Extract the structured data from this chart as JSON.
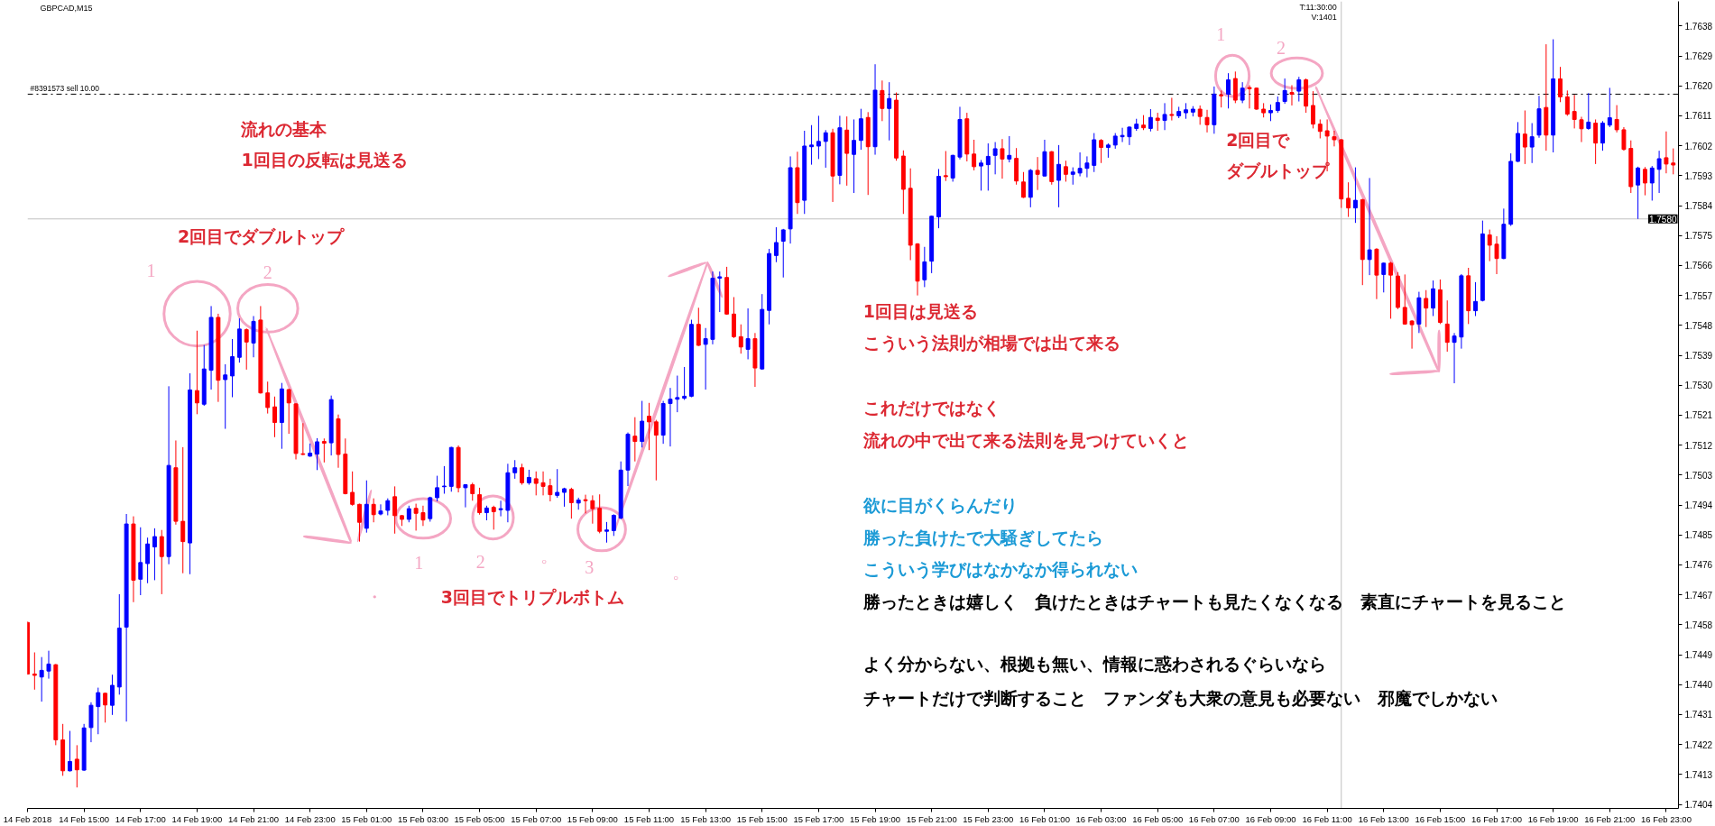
{
  "chart_data": {
    "type": "candlestick",
    "title": "GBPCAD,M15",
    "x": [
      "2018-02-14T13:00",
      "2018-02-14T13:15",
      "2018-02-14T13:30",
      "2018-02-14T13:45",
      "2018-02-14T14:00",
      "2018-02-14T14:15",
      "2018-02-14T14:30",
      "2018-02-14T14:45",
      "2018-02-14T15:00",
      "2018-02-14T15:15",
      "2018-02-14T15:30",
      "2018-02-14T15:45",
      "2018-02-14T16:00",
      "2018-02-14T16:15",
      "2018-02-14T16:30",
      "2018-02-14T16:45",
      "2018-02-14T17:00",
      "2018-02-14T17:15",
      "2018-02-14T17:30",
      "2018-02-14T17:45",
      "2018-02-14T18:00",
      "2018-02-14T18:15",
      "2018-02-14T18:30",
      "2018-02-14T18:45",
      "2018-02-14T19:00",
      "2018-02-14T19:15",
      "2018-02-14T19:30",
      "2018-02-14T19:45",
      "2018-02-14T20:00",
      "2018-02-14T20:15",
      "2018-02-14T20:30",
      "2018-02-14T20:45",
      "2018-02-14T21:00",
      "2018-02-14T21:15",
      "2018-02-14T21:30",
      "2018-02-14T21:45",
      "2018-02-14T22:00",
      "2018-02-14T22:15",
      "2018-02-14T22:30",
      "2018-02-14T22:45",
      "2018-02-14T23:00",
      "2018-02-14T23:15",
      "2018-02-14T23:30",
      "2018-02-14T23:45",
      "2018-02-15T00:00",
      "2018-02-15T00:15",
      "2018-02-15T00:30",
      "2018-02-15T00:45",
      "2018-02-15T01:00",
      "2018-02-15T01:15",
      "2018-02-15T01:30",
      "2018-02-15T01:45",
      "2018-02-15T02:00",
      "2018-02-15T02:15",
      "2018-02-15T02:30",
      "2018-02-15T02:45",
      "2018-02-15T03:00",
      "2018-02-15T03:15",
      "2018-02-15T03:30",
      "2018-02-15T03:45",
      "2018-02-15T04:00",
      "2018-02-15T04:15",
      "2018-02-15T04:30",
      "2018-02-15T04:45",
      "2018-02-15T05:00",
      "2018-02-15T05:15",
      "2018-02-15T05:30",
      "2018-02-15T05:45",
      "2018-02-15T06:00",
      "2018-02-15T06:15",
      "2018-02-15T06:30",
      "2018-02-15T06:45",
      "2018-02-15T07:00",
      "2018-02-15T07:15",
      "2018-02-15T07:30",
      "2018-02-15T07:45",
      "2018-02-15T08:00",
      "2018-02-15T08:15",
      "2018-02-15T08:30",
      "2018-02-15T08:45",
      "2018-02-15T09:00",
      "2018-02-15T09:15",
      "2018-02-15T09:30",
      "2018-02-15T09:45",
      "2018-02-15T10:00",
      "2018-02-15T10:15",
      "2018-02-15T10:30",
      "2018-02-15T10:45",
      "2018-02-15T11:00",
      "2018-02-15T11:15",
      "2018-02-15T11:30",
      "2018-02-15T11:45",
      "2018-02-15T12:00",
      "2018-02-15T12:15",
      "2018-02-15T12:30",
      "2018-02-15T12:45",
      "2018-02-15T13:00",
      "2018-02-15T13:15",
      "2018-02-15T13:30",
      "2018-02-15T13:45",
      "2018-02-15T14:00",
      "2018-02-15T14:15",
      "2018-02-15T14:30",
      "2018-02-15T14:45",
      "2018-02-15T15:00",
      "2018-02-15T15:15",
      "2018-02-15T15:30",
      "2018-02-15T15:45",
      "2018-02-15T16:00",
      "2018-02-15T16:15",
      "2018-02-15T16:30",
      "2018-02-15T16:45",
      "2018-02-15T17:00",
      "2018-02-15T17:15",
      "2018-02-15T17:30",
      "2018-02-15T17:45",
      "2018-02-15T18:00",
      "2018-02-15T18:15",
      "2018-02-15T18:30",
      "2018-02-15T18:45",
      "2018-02-15T19:00",
      "2018-02-15T19:15",
      "2018-02-15T19:30",
      "2018-02-15T19:45",
      "2018-02-15T20:00",
      "2018-02-15T20:15",
      "2018-02-15T20:30",
      "2018-02-15T20:45",
      "2018-02-15T21:00",
      "2018-02-15T21:15",
      "2018-02-15T21:30",
      "2018-02-15T21:45",
      "2018-02-15T22:00",
      "2018-02-15T22:15",
      "2018-02-15T22:30",
      "2018-02-15T22:45",
      "2018-02-15T23:00",
      "2018-02-15T23:15",
      "2018-02-15T23:30",
      "2018-02-15T23:45",
      "2018-02-16T00:00",
      "2018-02-16T00:15",
      "2018-02-16T00:30",
      "2018-02-16T00:45",
      "2018-02-16T01:00",
      "2018-02-16T01:15",
      "2018-02-16T01:30",
      "2018-02-16T01:45",
      "2018-02-16T02:00",
      "2018-02-16T02:15",
      "2018-02-16T02:30",
      "2018-02-16T02:45",
      "2018-02-16T03:00",
      "2018-02-16T03:15",
      "2018-02-16T03:30",
      "2018-02-16T03:45",
      "2018-02-16T04:00",
      "2018-02-16T04:15",
      "2018-02-16T04:30",
      "2018-02-16T04:45",
      "2018-02-16T05:00",
      "2018-02-16T05:15",
      "2018-02-16T05:30",
      "2018-02-16T05:45",
      "2018-02-16T06:00",
      "2018-02-16T06:15",
      "2018-02-16T06:30",
      "2018-02-16T06:45",
      "2018-02-16T07:00",
      "2018-02-16T07:15",
      "2018-02-16T07:30",
      "2018-02-16T07:45",
      "2018-02-16T08:00",
      "2018-02-16T08:15",
      "2018-02-16T08:30",
      "2018-02-16T08:45",
      "2018-02-16T09:00",
      "2018-02-16T09:15",
      "2018-02-16T09:30",
      "2018-02-16T09:45",
      "2018-02-16T10:00",
      "2018-02-16T10:15",
      "2018-02-16T10:30",
      "2018-02-16T10:45",
      "2018-02-16T11:00",
      "2018-02-16T11:15",
      "2018-02-16T11:30",
      "2018-02-16T11:45",
      "2018-02-16T12:00",
      "2018-02-16T12:15",
      "2018-02-16T12:30",
      "2018-02-16T12:45",
      "2018-02-16T13:00",
      "2018-02-16T13:15",
      "2018-02-16T13:30",
      "2018-02-16T13:45",
      "2018-02-16T14:00",
      "2018-02-16T14:15",
      "2018-02-16T14:30",
      "2018-02-16T14:45",
      "2018-02-16T15:00",
      "2018-02-16T15:15",
      "2018-02-16T15:30",
      "2018-02-16T15:45",
      "2018-02-16T16:00",
      "2018-02-16T16:15",
      "2018-02-16T16:30",
      "2018-02-16T16:45",
      "2018-02-16T17:00",
      "2018-02-16T17:15",
      "2018-02-16T17:30",
      "2018-02-16T17:45",
      "2018-02-16T18:00",
      "2018-02-16T18:15",
      "2018-02-16T18:30",
      "2018-02-16T18:45",
      "2018-02-16T19:00",
      "2018-02-16T19:15",
      "2018-02-16T19:30",
      "2018-02-16T19:45",
      "2018-02-16T20:00",
      "2018-02-16T20:15",
      "2018-02-16T20:30",
      "2018-02-16T20:45",
      "2018-02-16T21:00",
      "2018-02-16T21:15",
      "2018-02-16T21:30",
      "2018-02-16T21:45",
      "2018-02-16T22:00",
      "2018-02-16T22:15",
      "2018-02-16T22:30",
      "2018-02-16T22:45",
      "2018-02-16T23:00",
      "2018-02-16T23:15"
    ],
    "ohlc": [
      [
        1.74587,
        1.7459,
        1.7443,
        1.74432
      ],
      [
        1.74432,
        1.74497,
        1.74385,
        1.74428
      ],
      [
        1.74423,
        1.74483,
        1.74349,
        1.74443
      ],
      [
        1.74441,
        1.74502,
        1.74418,
        1.74462
      ],
      [
        1.7446,
        1.74462,
        1.74218,
        1.74234
      ],
      [
        1.74234,
        1.74282,
        1.74126,
        1.74141
      ],
      [
        1.74141,
        1.74261,
        1.74139,
        1.74169
      ],
      [
        1.74176,
        1.74218,
        1.74091,
        1.74144
      ],
      [
        1.74143,
        1.74282,
        1.74141,
        1.7427
      ],
      [
        1.74271,
        1.74347,
        1.74227,
        1.74338
      ],
      [
        1.74334,
        1.74391,
        1.74251,
        1.74376
      ],
      [
        1.74374,
        1.74376,
        1.74286,
        1.74339
      ],
      [
        1.74338,
        1.7443,
        1.74309,
        1.74398
      ],
      [
        1.74393,
        1.74672,
        1.7437,
        1.7457
      ],
      [
        1.74573,
        1.74913,
        1.74289,
        1.74883
      ],
      [
        1.74883,
        1.74906,
        1.74648,
        1.74714
      ],
      [
        1.74717,
        1.74873,
        1.74669,
        1.74767
      ],
      [
        1.74764,
        1.74842,
        1.74705,
        1.74823
      ],
      [
        1.74814,
        1.7487,
        1.74714,
        1.74845
      ],
      [
        1.74845,
        1.74865,
        1.74672,
        1.74785
      ],
      [
        1.74785,
        1.75297,
        1.74762,
        1.75059
      ],
      [
        1.75052,
        1.75134,
        1.74881,
        1.74891
      ],
      [
        1.74891,
        1.75114,
        1.74735,
        1.7483
      ],
      [
        1.74826,
        1.75336,
        1.74732,
        1.75286
      ],
      [
        1.75284,
        1.75464,
        1.75213,
        1.75247
      ],
      [
        1.75243,
        1.75421,
        1.75238,
        1.75349
      ],
      [
        1.75345,
        1.75538,
        1.75287,
        1.75504
      ],
      [
        1.75504,
        1.75515,
        1.7525,
        1.75315
      ],
      [
        1.75317,
        1.75363,
        1.75169,
        1.75331
      ],
      [
        1.75328,
        1.75439,
        1.75264,
        1.75386
      ],
      [
        1.75384,
        1.75501,
        1.75368,
        1.75469
      ],
      [
        1.75467,
        1.75471,
        1.75347,
        1.7543
      ],
      [
        1.75427,
        1.75508,
        1.75384,
        1.75492
      ],
      [
        1.75496,
        1.75538,
        1.75275,
        1.75277
      ],
      [
        1.75277,
        1.75311,
        1.75215,
        1.75233
      ],
      [
        1.75235,
        1.75266,
        1.75144,
        1.75188
      ],
      [
        1.75188,
        1.75307,
        1.75109,
        1.75289
      ],
      [
        1.75287,
        1.75289,
        1.75154,
        1.75247
      ],
      [
        1.75244,
        1.75246,
        1.75077,
        1.75095
      ],
      [
        1.75094,
        1.75186,
        1.7509,
        1.75092
      ],
      [
        1.75087,
        1.75125,
        1.75085,
        1.75096
      ],
      [
        1.75093,
        1.75141,
        1.75045,
        1.7513
      ],
      [
        1.75131,
        1.7514,
        1.75068,
        1.75126
      ],
      [
        1.75127,
        1.75269,
        1.75089,
        1.75257
      ],
      [
        1.75199,
        1.75212,
        1.75052,
        1.75092
      ],
      [
        1.75093,
        1.7514,
        1.74972,
        1.74974
      ],
      [
        1.74978,
        1.75041,
        1.74938,
        1.74942
      ],
      [
        1.74942,
        1.74944,
        1.7483,
        1.74888
      ],
      [
        1.7487,
        1.75014,
        1.74857,
        1.74942
      ],
      [
        1.74942,
        1.7496,
        1.74888,
        1.74911
      ],
      [
        1.74913,
        1.74942,
        1.74909,
        1.74922
      ],
      [
        1.74924,
        1.7496,
        1.74909,
        1.74953
      ],
      [
        1.74965,
        1.74996,
        1.74854,
        1.74908
      ],
      [
        1.74908,
        1.7491,
        1.74877,
        1.74897
      ],
      [
        1.74897,
        1.74938,
        1.74888,
        1.74929
      ],
      [
        1.7493,
        1.74944,
        1.74863,
        1.74915
      ],
      [
        1.74917,
        1.74938,
        1.74877,
        1.74895
      ],
      [
        1.74899,
        1.74965,
        1.7489,
        1.74962
      ],
      [
        1.74962,
        1.75028,
        1.74951,
        1.74992
      ],
      [
        1.74995,
        1.75057,
        1.74974,
        1.74997
      ],
      [
        1.74996,
        1.75115,
        1.7498,
        1.75113
      ],
      [
        1.75113,
        1.75119,
        1.74978,
        1.74992
      ],
      [
        1.74992,
        1.75003,
        1.74933,
        1.75001
      ],
      [
        1.75001,
        1.75007,
        1.74953,
        1.74974
      ],
      [
        1.74971,
        1.74992,
        1.74911,
        1.74917
      ],
      [
        1.74917,
        1.74938,
        1.74894,
        1.74931
      ],
      [
        1.74933,
        1.74938,
        1.74866,
        1.7492
      ],
      [
        1.74926,
        1.74953,
        1.74906,
        1.74929
      ],
      [
        1.74924,
        1.75064,
        1.74888,
        1.75037
      ],
      [
        1.75037,
        1.75075,
        1.75019,
        1.75052
      ],
      [
        1.75052,
        1.75064,
        1.75001,
        1.75007
      ],
      [
        1.75007,
        1.75046,
        1.75001,
        1.75023
      ],
      [
        1.75019,
        1.75041,
        1.74969,
        1.75005
      ],
      [
        1.75007,
        1.75041,
        1.74969,
        1.74996
      ],
      [
        1.74998,
        1.75019,
        1.74951,
        1.74971
      ],
      [
        1.74969,
        1.75048,
        1.74962,
        1.74978
      ],
      [
        1.74978,
        1.74992,
        1.74935,
        1.74989
      ],
      [
        1.74987,
        1.74992,
        1.74899,
        1.74947
      ],
      [
        1.74946,
        1.74962,
        1.74926,
        1.74955
      ],
      [
        1.74956,
        1.74971,
        1.74915,
        1.74953
      ],
      [
        1.74953,
        1.74969,
        1.74884,
        1.74929
      ],
      [
        1.7493,
        1.74972,
        1.74855,
        1.74861
      ],
      [
        1.74861,
        1.74889,
        1.74827,
        1.74865
      ],
      [
        1.74863,
        1.74912,
        1.74847,
        1.74909
      ],
      [
        1.74901,
        1.75071,
        1.74897,
        1.75045
      ],
      [
        1.75045,
        1.75158,
        1.74997,
        1.75153
      ],
      [
        1.75147,
        1.75204,
        1.75071,
        1.75131
      ],
      [
        1.75131,
        1.75253,
        1.75113,
        1.75192
      ],
      [
        1.75207,
        1.75247,
        1.75105,
        1.7519
      ],
      [
        1.7519,
        1.75196,
        1.75014,
        1.7515
      ],
      [
        1.7515,
        1.75253,
        1.75124,
        1.75245
      ],
      [
        1.75245,
        1.75292,
        1.75116,
        1.75258
      ],
      [
        1.75258,
        1.75329,
        1.75219,
        1.75263
      ],
      [
        1.75261,
        1.75355,
        1.75256,
        1.75267
      ],
      [
        1.75267,
        1.75497,
        1.75264,
        1.75483
      ],
      [
        1.75483,
        1.75533,
        1.75418,
        1.7542
      ],
      [
        1.75423,
        1.75472,
        1.75287,
        1.7544
      ],
      [
        1.75438,
        1.75642,
        1.75423,
        1.75622
      ],
      [
        1.75622,
        1.75642,
        1.7552,
        1.75626
      ],
      [
        1.75624,
        1.75656,
        1.75512,
        1.75514
      ],
      [
        1.75514,
        1.75565,
        1.75442,
        1.75446
      ],
      [
        1.75446,
        1.75483,
        1.75395,
        1.75415
      ],
      [
        1.75408,
        1.75531,
        1.75378,
        1.7544
      ],
      [
        1.7544,
        1.75457,
        1.75295,
        1.75352
      ],
      [
        1.75349,
        1.75574,
        1.75347,
        1.75528
      ],
      [
        1.75525,
        1.7571,
        1.75483,
        1.75696
      ],
      [
        1.7569,
        1.75775,
        1.7567,
        1.75729
      ],
      [
        1.75733,
        1.7577,
        1.75624,
        1.75767
      ],
      [
        1.7577,
        1.75988,
        1.75726,
        1.75954
      ],
      [
        1.75954,
        1.76002,
        1.75815,
        1.75849
      ],
      [
        1.75856,
        1.76065,
        1.75815,
        1.76019
      ],
      [
        1.76017,
        1.76082,
        1.75963,
        1.76022
      ],
      [
        1.76019,
        1.7611,
        1.7598,
        1.76033
      ],
      [
        1.76033,
        1.76067,
        1.75954,
        1.76059
      ],
      [
        1.76059,
        1.76071,
        1.75851,
        1.75929
      ],
      [
        1.75931,
        1.7611,
        1.75904,
        1.76074
      ],
      [
        1.76067,
        1.76108,
        1.759,
        1.75997
      ],
      [
        1.75994,
        1.76099,
        1.75878,
        1.76036
      ],
      [
        1.76036,
        1.76131,
        1.76008,
        1.76101
      ],
      [
        1.76105,
        1.76121,
        1.75872,
        1.76017
      ],
      [
        1.76017,
        1.76265,
        1.75993,
        1.76187
      ],
      [
        1.76186,
        1.76216,
        1.76094,
        1.76132
      ],
      [
        1.76132,
        1.76211,
        1.76036,
        1.76162
      ],
      [
        1.76157,
        1.7618,
        1.75975,
        1.75983
      ],
      [
        1.75989,
        1.76006,
        1.75815,
        1.75889
      ],
      [
        1.75892,
        1.75952,
        1.75676,
        1.75721
      ],
      [
        1.75725,
        1.75727,
        1.7557,
        1.75613
      ],
      [
        1.75617,
        1.75716,
        1.75595,
        1.75671
      ],
      [
        1.75673,
        1.7581,
        1.75637,
        1.75808
      ],
      [
        1.75806,
        1.7595,
        1.75772,
        1.75928
      ],
      [
        1.7593,
        1.76004,
        1.75914,
        1.75927
      ],
      [
        1.75923,
        1.75993,
        1.75912,
        1.75991
      ],
      [
        1.75986,
        1.76137,
        1.75979,
        1.76099
      ],
      [
        1.76101,
        1.76119,
        1.75973,
        1.75995
      ],
      [
        1.75995,
        1.76038,
        1.75946,
        1.75957
      ],
      [
        1.75959,
        1.75977,
        1.75885,
        1.75968
      ],
      [
        1.75963,
        1.76027,
        1.75885,
        1.75988
      ],
      [
        1.75991,
        1.76031,
        1.75934,
        1.76011
      ],
      [
        1.76011,
        1.7604,
        1.75921,
        1.7598
      ],
      [
        1.7598,
        1.76049,
        1.7597,
        1.75991
      ],
      [
        1.75982,
        1.76013,
        1.75903,
        1.75914
      ],
      [
        1.75911,
        1.75941,
        1.75863,
        1.75865
      ],
      [
        1.75865,
        1.7595,
        1.75835,
        1.75946
      ],
      [
        1.75946,
        1.75986,
        1.75887,
        1.75934
      ],
      [
        1.75929,
        1.76038,
        1.75928,
        1.76002
      ],
      [
        1.76002,
        1.76004,
        1.75903,
        1.75912
      ],
      [
        1.75916,
        1.76022,
        1.75835,
        1.75964
      ],
      [
        1.75957,
        1.75975,
        1.75912,
        1.75934
      ],
      [
        1.75934,
        1.75955,
        1.75903,
        1.75941
      ],
      [
        1.75938,
        1.76,
        1.75928,
        1.75952
      ],
      [
        1.75952,
        1.75988,
        1.75925,
        1.75968
      ],
      [
        1.75961,
        1.76058,
        1.75941,
        1.76038
      ],
      [
        1.76036,
        1.7604,
        1.75968,
        1.76015
      ],
      [
        1.76015,
        1.76027,
        1.75984,
        1.76022
      ],
      [
        1.76022,
        1.76058,
        1.76011,
        1.76049
      ],
      [
        1.76047,
        1.76074,
        1.76031,
        1.76051
      ],
      [
        1.76047,
        1.76078,
        1.76022,
        1.76076
      ],
      [
        1.76072,
        1.76101,
        1.76065,
        1.76085
      ],
      [
        1.76082,
        1.76112,
        1.76067,
        1.76074
      ],
      [
        1.76072,
        1.7613,
        1.76063,
        1.76105
      ],
      [
        1.76103,
        1.76119,
        1.76065,
        1.76096
      ],
      [
        1.76096,
        1.76148,
        1.76067,
        1.76114
      ],
      [
        1.76114,
        1.76164,
        1.76096,
        1.76111
      ],
      [
        1.7611,
        1.76137,
        1.76103,
        1.76123
      ],
      [
        1.76119,
        1.76148,
        1.76101,
        1.76128
      ],
      [
        1.76121,
        1.76139,
        1.76108,
        1.7613
      ],
      [
        1.7613,
        1.76141,
        1.76083,
        1.76108
      ],
      [
        1.76105,
        1.76128,
        1.7606,
        1.76083
      ],
      [
        1.76083,
        1.76198,
        1.76056,
        1.76175
      ],
      [
        1.76173,
        1.76186,
        1.76135,
        1.7617
      ],
      [
        1.76175,
        1.76238,
        1.76132,
        1.76218
      ],
      [
        1.76222,
        1.76243,
        1.76148,
        1.76157
      ],
      [
        1.76157,
        1.76211,
        1.76148,
        1.76193
      ],
      [
        1.76195,
        1.76202,
        1.76132,
        1.76191
      ],
      [
        1.76193,
        1.76195,
        1.76128,
        1.7613
      ],
      [
        1.7613,
        1.76148,
        1.76105,
        1.76119
      ],
      [
        1.76119,
        1.76144,
        1.76094,
        1.76126
      ],
      [
        1.76126,
        1.76168,
        1.76119,
        1.7615
      ],
      [
        1.76153,
        1.76222,
        1.76146,
        1.76186
      ],
      [
        1.7618,
        1.76202,
        1.76141,
        1.76175
      ],
      [
        1.76184,
        1.76227,
        1.76153,
        1.76218
      ],
      [
        1.76218,
        1.76222,
        1.76119,
        1.76139
      ],
      [
        1.76141,
        1.76184,
        1.76072,
        1.76085
      ],
      [
        1.76085,
        1.76099,
        1.76042,
        1.76063
      ],
      [
        1.76065,
        1.76099,
        1.75943,
        1.76049
      ],
      [
        1.76047,
        1.76065,
        1.76018,
        1.76038
      ],
      [
        1.76038,
        1.7604,
        1.75833,
        1.7586
      ],
      [
        1.75862,
        1.7591,
        1.75806,
        1.75833
      ],
      [
        1.75833,
        1.75955,
        1.75788,
        1.75856
      ],
      [
        1.75858,
        1.7586,
        1.75601,
        1.75678
      ],
      [
        1.75678,
        1.75923,
        1.75631,
        1.75707
      ],
      [
        1.75709,
        1.75712,
        1.75559,
        1.75631
      ],
      [
        1.75633,
        1.75669,
        1.75579,
        1.75667
      ],
      [
        1.75667,
        1.75671,
        1.755,
        1.75631
      ],
      [
        1.75628,
        1.7564,
        1.75529,
        1.75534
      ],
      [
        1.75534,
        1.75633,
        1.75482,
        1.75484
      ],
      [
        1.75493,
        1.75496,
        1.7541,
        1.75482
      ],
      [
        1.75484,
        1.75581,
        1.75457,
        1.75563
      ],
      [
        1.75561,
        1.75586,
        1.75475,
        1.75532
      ],
      [
        1.75532,
        1.75615,
        1.75508,
        1.7559
      ],
      [
        1.75587,
        1.75618,
        1.75484,
        1.75489
      ],
      [
        1.75484,
        1.75555,
        1.75401,
        1.75429
      ],
      [
        1.75429,
        1.75457,
        1.75306,
        1.75448
      ],
      [
        1.75445,
        1.75634,
        1.7541,
        1.75629
      ],
      [
        1.75629,
        1.75653,
        1.75484,
        1.75524
      ],
      [
        1.75524,
        1.7561,
        1.75508,
        1.75552
      ],
      [
        1.75555,
        1.75795,
        1.75552,
        1.75755
      ],
      [
        1.75752,
        1.75768,
        1.75673,
        1.75721
      ],
      [
        1.75724,
        1.75748,
        1.75634,
        1.75681
      ],
      [
        1.75681,
        1.75831,
        1.75679,
        1.75784
      ],
      [
        1.75784,
        1.75997,
        1.75779,
        1.75973
      ],
      [
        1.75973,
        1.76091,
        1.75971,
        1.76057
      ],
      [
        1.76055,
        1.76126,
        1.75965,
        1.76016
      ],
      [
        1.76016,
        1.76088,
        1.75968,
        1.76047
      ],
      [
        1.76052,
        1.7617,
        1.76044,
        1.76131
      ],
      [
        1.76135,
        1.76325,
        1.76005,
        1.76052
      ],
      [
        1.76052,
        1.7634,
        1.76,
        1.76221
      ],
      [
        1.76221,
        1.76257,
        1.76151,
        1.76167
      ],
      [
        1.76167,
        1.76186,
        1.7611,
        1.76115
      ],
      [
        1.76123,
        1.76173,
        1.76072,
        1.76099
      ],
      [
        1.76098,
        1.76107,
        1.76031,
        1.76071
      ],
      [
        1.76072,
        1.76178,
        1.76068,
        1.76091
      ],
      [
        1.76088,
        1.76099,
        1.75965,
        1.76028
      ],
      [
        1.76028,
        1.76094,
        1.76005,
        1.76088
      ],
      [
        1.76082,
        1.76194,
        1.76076,
        1.76104
      ],
      [
        1.76099,
        1.76142,
        1.7606,
        1.76068
      ],
      [
        1.76068,
        1.76076,
        1.76005,
        1.76009
      ],
      [
        1.76012,
        1.76036,
        1.75878,
        1.75897
      ],
      [
        1.75902,
        1.75957,
        1.758,
        1.75953
      ],
      [
        1.75949,
        1.75956,
        1.75871,
        1.75908
      ],
      [
        1.75908,
        1.75959,
        1.75855,
        1.75953
      ],
      [
        1.75949,
        1.76005,
        1.75878,
        1.75981
      ],
      [
        1.75984,
        1.76063,
        1.75937,
        1.75965
      ],
      [
        1.75968,
        1.76012,
        1.75934,
        1.75962
      ]
    ],
    "colors": [
      "#ff0000",
      "#ff0000",
      "#0000ff",
      "#0000ff",
      "#ff0000",
      "#ff0000",
      "#0000ff",
      "#ff0000",
      "#0000ff",
      "#0000ff",
      "#0000ff",
      "#ff0000",
      "#0000ff",
      "#0000ff",
      "#0000ff",
      "#ff0000",
      "#0000ff",
      "#0000ff",
      "#0000ff",
      "#ff0000",
      "#0000ff",
      "#ff0000",
      "#ff0000",
      "#0000ff",
      "#ff0000",
      "#0000ff",
      "#0000ff",
      "#ff0000",
      "#0000ff",
      "#0000ff",
      "#0000ff",
      "#ff0000",
      "#0000ff",
      "#ff0000",
      "#ff0000",
      "#ff0000",
      "#0000ff",
      "#ff0000",
      "#ff0000",
      "#ff0000",
      "#0000ff",
      "#0000ff",
      "#ff0000",
      "#0000ff",
      "#ff0000",
      "#ff0000",
      "#ff0000",
      "#ff0000",
      "#0000ff",
      "#ff0000",
      "#0000ff",
      "#0000ff",
      "#ff0000",
      "#ff0000",
      "#0000ff",
      "#ff0000",
      "#ff0000",
      "#0000ff",
      "#0000ff",
      "#0000ff",
      "#0000ff",
      "#ff0000",
      "#0000ff",
      "#ff0000",
      "#ff0000",
      "#0000ff",
      "#ff0000",
      "#0000ff",
      "#0000ff",
      "#0000ff",
      "#ff0000",
      "#0000ff",
      "#ff0000",
      "#ff0000",
      "#ff0000",
      "#0000ff",
      "#0000ff",
      "#ff0000",
      "#0000ff",
      "#ff0000",
      "#ff0000",
      "#ff0000",
      "#0000ff",
      "#0000ff",
      "#0000ff",
      "#0000ff",
      "#ff0000",
      "#0000ff",
      "#ff0000",
      "#ff0000",
      "#0000ff",
      "#0000ff",
      "#0000ff",
      "#0000ff",
      "#0000ff",
      "#ff0000",
      "#0000ff",
      "#0000ff",
      "#0000ff",
      "#ff0000",
      "#ff0000",
      "#ff0000",
      "#0000ff",
      "#ff0000",
      "#0000ff",
      "#0000ff",
      "#0000ff",
      "#0000ff",
      "#0000ff",
      "#ff0000",
      "#0000ff",
      "#0000ff",
      "#0000ff",
      "#0000ff",
      "#ff0000",
      "#0000ff",
      "#ff0000",
      "#0000ff",
      "#0000ff",
      "#ff0000",
      "#0000ff",
      "#ff0000",
      "#0000ff",
      "#ff0000",
      "#ff0000",
      "#ff0000",
      "#ff0000",
      "#0000ff",
      "#0000ff",
      "#0000ff",
      "#ff0000",
      "#0000ff",
      "#0000ff",
      "#ff0000",
      "#ff0000",
      "#0000ff",
      "#0000ff",
      "#0000ff",
      "#ff0000",
      "#0000ff",
      "#ff0000",
      "#ff0000",
      "#0000ff",
      "#ff0000",
      "#0000ff",
      "#ff0000",
      "#0000ff",
      "#ff0000",
      "#0000ff",
      "#0000ff",
      "#0000ff",
      "#0000ff",
      "#ff0000",
      "#0000ff",
      "#0000ff",
      "#0000ff",
      "#0000ff",
      "#0000ff",
      "#ff0000",
      "#0000ff",
      "#ff0000",
      "#0000ff",
      "#ff0000",
      "#0000ff",
      "#0000ff",
      "#0000ff",
      "#ff0000",
      "#ff0000",
      "#0000ff",
      "#ff0000",
      "#0000ff",
      "#ff0000",
      "#0000ff",
      "#ff0000",
      "#ff0000",
      "#ff0000",
      "#0000ff",
      "#0000ff",
      "#0000ff",
      "#ff0000",
      "#0000ff",
      "#ff0000",
      "#ff0000",
      "#ff0000",
      "#ff0000",
      "#ff0000",
      "#ff0000",
      "#ff0000",
      "#0000ff",
      "#ff0000",
      "#0000ff",
      "#ff0000",
      "#0000ff",
      "#ff0000",
      "#ff0000",
      "#ff0000",
      "#ff0000",
      "#0000ff",
      "#ff0000",
      "#0000ff",
      "#ff0000",
      "#ff0000",
      "#0000ff",
      "#0000ff",
      "#ff0000",
      "#0000ff",
      "#0000ff",
      "#ff0000",
      "#ff0000",
      "#0000ff",
      "#0000ff",
      "#0000ff",
      "#ff0000",
      "#0000ff",
      "#0000ff",
      "#ff0000",
      "#0000ff",
      "#ff0000",
      "#ff0000",
      "#ff0000",
      "#ff0000",
      "#0000ff",
      "#ff0000",
      "#0000ff",
      "#0000ff",
      "#ff0000",
      "#ff0000",
      "#ff0000",
      "#0000ff",
      "#ff0000",
      "#0000ff",
      "#0000ff",
      "#ff0000",
      "#ff0000"
    ],
    "xlim": [
      "2018-02-14T13:00",
      "2018-02-16T23:26"
    ],
    "ylim": [
      1.74028,
      1.76454
    ],
    "xticks": [
      {
        "value": "2018-02-14T13:00",
        "label": "14 Feb 2018"
      },
      {
        "value": "2018-02-14T15:00",
        "label": "14 Feb 15:00"
      },
      {
        "value": "2018-02-14T17:00",
        "label": "14 Feb 17:00"
      },
      {
        "value": "2018-02-14T19:00",
        "label": "14 Feb 19:00"
      },
      {
        "value": "2018-02-14T21:00",
        "label": "14 Feb 21:00"
      },
      {
        "value": "2018-02-14T23:00",
        "label": "14 Feb 23:00"
      },
      {
        "value": "2018-02-15T01:00",
        "label": "15 Feb 01:00"
      },
      {
        "value": "2018-02-15T03:00",
        "label": "15 Feb 03:00"
      },
      {
        "value": "2018-02-15T05:00",
        "label": "15 Feb 05:00"
      },
      {
        "value": "2018-02-15T07:00",
        "label": "15 Feb 07:00"
      },
      {
        "value": "2018-02-15T09:00",
        "label": "15 Feb 09:00"
      },
      {
        "value": "2018-02-15T11:00",
        "label": "15 Feb 11:00"
      },
      {
        "value": "2018-02-15T13:00",
        "label": "15 Feb 13:00"
      },
      {
        "value": "2018-02-15T15:00",
        "label": "15 Feb 15:00"
      },
      {
        "value": "2018-02-15T17:00",
        "label": "15 Feb 17:00"
      },
      {
        "value": "2018-02-15T19:00",
        "label": "15 Feb 19:00"
      },
      {
        "value": "2018-02-15T21:00",
        "label": "15 Feb 21:00"
      },
      {
        "value": "2018-02-15T23:00",
        "label": "15 Feb 23:00"
      },
      {
        "value": "2018-02-16T01:00",
        "label": "16 Feb 01:00"
      },
      {
        "value": "2018-02-16T03:00",
        "label": "16 Feb 03:00"
      },
      {
        "value": "2018-02-16T05:00",
        "label": "16 Feb 05:00"
      },
      {
        "value": "2018-02-16T07:00",
        "label": "16 Feb 07:00"
      },
      {
        "value": "2018-02-16T09:00",
        "label": "16 Feb 09:00"
      },
      {
        "value": "2018-02-16T11:00",
        "label": "16 Feb 11:00"
      },
      {
        "value": "2018-02-16T13:00",
        "label": "16 Feb 13:00"
      },
      {
        "value": "2018-02-16T15:00",
        "label": "16 Feb 15:00"
      },
      {
        "value": "2018-02-16T17:00",
        "label": "16 Feb 17:00"
      },
      {
        "value": "2018-02-16T19:00",
        "label": "16 Feb 19:00"
      },
      {
        "value": "2018-02-16T21:00",
        "label": "16 Feb 21:00"
      },
      {
        "value": "2018-02-16T23:00",
        "label": "16 Feb 23:00"
      }
    ],
    "yticks": [
      1.7404,
      1.7413,
      1.7422,
      1.7431,
      {
        "value": 1.744,
        "label": "1.7440"
      },
      1.7449,
      1.7458,
      1.7467,
      1.7476,
      1.7485,
      1.7494,
      1.7503,
      1.7512,
      1.7521,
      {
        "value": 1.753,
        "label": "1.7530"
      },
      1.7539,
      1.7548,
      1.7557,
      1.7566,
      1.7575,
      1.7584,
      1.7593,
      1.7602,
      1.7611,
      {
        "value": 1.762,
        "label": "1.7620"
      },
      1.7629,
      1.7638
    ],
    "ref_lines": [
      {
        "axis": "y",
        "value": 1.76175,
        "label": "#8391573 sell 10.00",
        "color": "#000000",
        "line_style": "dashdot"
      },
      {
        "axis": "y",
        "value": 1.758,
        "label": "1.7580",
        "color": "#c0c0c0",
        "line_style": "solid"
      },
      {
        "axis": "x",
        "value": "2018-02-16T11:30",
        "label": "T:11:30:00",
        "color": "#c0c0c0",
        "line_style": "solid"
      }
    ],
    "annotations": [
      "流れの基本",
      "1回目の反転は見送る",
      "2回目でダブルトップ",
      "3回目でトリプルボトム",
      "1回目は見送る",
      "こういう法則が相場では出て来る",
      "これだけではなく",
      "流れの中で出て来る法則を見つけていくと",
      "2回目で",
      "ダブルトップ",
      "欲に目がくらんだり",
      "勝った負けたで大騒ぎしてたら",
      "こういう学びはなかなか得られない",
      "勝ったときは嬉しく　負けたときはチャートも見たくなくなる　素直にチャートを見ること",
      "よく分からない、根拠も無い、情報に惑わされるぐらいなら",
      "チャートだけで判断すること　ファンダも大衆の意見も必要ない　邪魔でしかない",
      "1",
      "2",
      "1",
      "2",
      "3",
      "1",
      "2",
      "・",
      "。",
      "。",
      {
        "text": "V:1401",
        "x": "2018-02-16T11:30"
      }
    ]
  }
}
